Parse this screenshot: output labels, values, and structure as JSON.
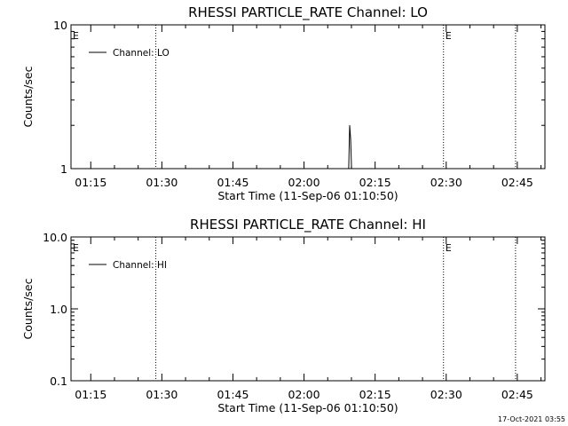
{
  "footer_timestamp": "17-Oct-2021 03:55",
  "chart_data": [
    {
      "type": "line",
      "title": "RHESSI PARTICLE_RATE Channel: LO",
      "xlabel": "Start Time (11-Sep-06 01:10:50)",
      "ylabel": "Counts/sec",
      "x_tick_labels": [
        "01:15",
        "01:30",
        "01:45",
        "02:00",
        "02:15",
        "02:30",
        "02:45"
      ],
      "x_tick_minutes": [
        4.17,
        19.17,
        34.17,
        49.17,
        64.17,
        79.17,
        94.17
      ],
      "xlim_minutes": [
        0,
        100
      ],
      "y_scale": "log",
      "ylim": [
        1,
        10
      ],
      "y_tick_values": [
        1,
        10
      ],
      "y_tick_labels": [
        "1",
        "10"
      ],
      "series": [
        {
          "name": "Channel: LO",
          "x_minutes": [
            58.6,
            58.8,
            59.0,
            59.2,
            59.4
          ],
          "y": [
            1,
            2,
            1.6,
            1,
            1
          ]
        }
      ],
      "legend": {
        "label": "Channel: LO",
        "placement": "top-left"
      },
      "vertical_markers_minutes": [
        17.9,
        78.6,
        93.8
      ],
      "event_markers": [
        {
          "label": "E",
          "minute": 0
        },
        {
          "label": "E",
          "minute": 78.6
        }
      ]
    },
    {
      "type": "line",
      "title": "RHESSI PARTICLE_RATE Channel: HI",
      "xlabel": "Start Time (11-Sep-06 01:10:50)",
      "ylabel": "Counts/sec",
      "x_tick_labels": [
        "01:15",
        "01:30",
        "01:45",
        "02:00",
        "02:15",
        "02:30",
        "02:45"
      ],
      "x_tick_minutes": [
        4.17,
        19.17,
        34.17,
        49.17,
        64.17,
        79.17,
        94.17
      ],
      "xlim_minutes": [
        0,
        100
      ],
      "y_scale": "log",
      "ylim": [
        0.1,
        10
      ],
      "y_tick_values": [
        0.1,
        1,
        10
      ],
      "y_tick_labels": [
        "0.1",
        "1.0",
        "10.0"
      ],
      "series": [
        {
          "name": "Channel: HI",
          "x_minutes": [],
          "y": []
        }
      ],
      "legend": {
        "label": "Channel: HI",
        "placement": "top-left"
      },
      "vertical_markers_minutes": [
        17.9,
        78.6,
        93.8
      ],
      "event_markers": [
        {
          "label": "E",
          "minute": 0
        },
        {
          "label": "E",
          "minute": 78.6
        }
      ]
    }
  ]
}
